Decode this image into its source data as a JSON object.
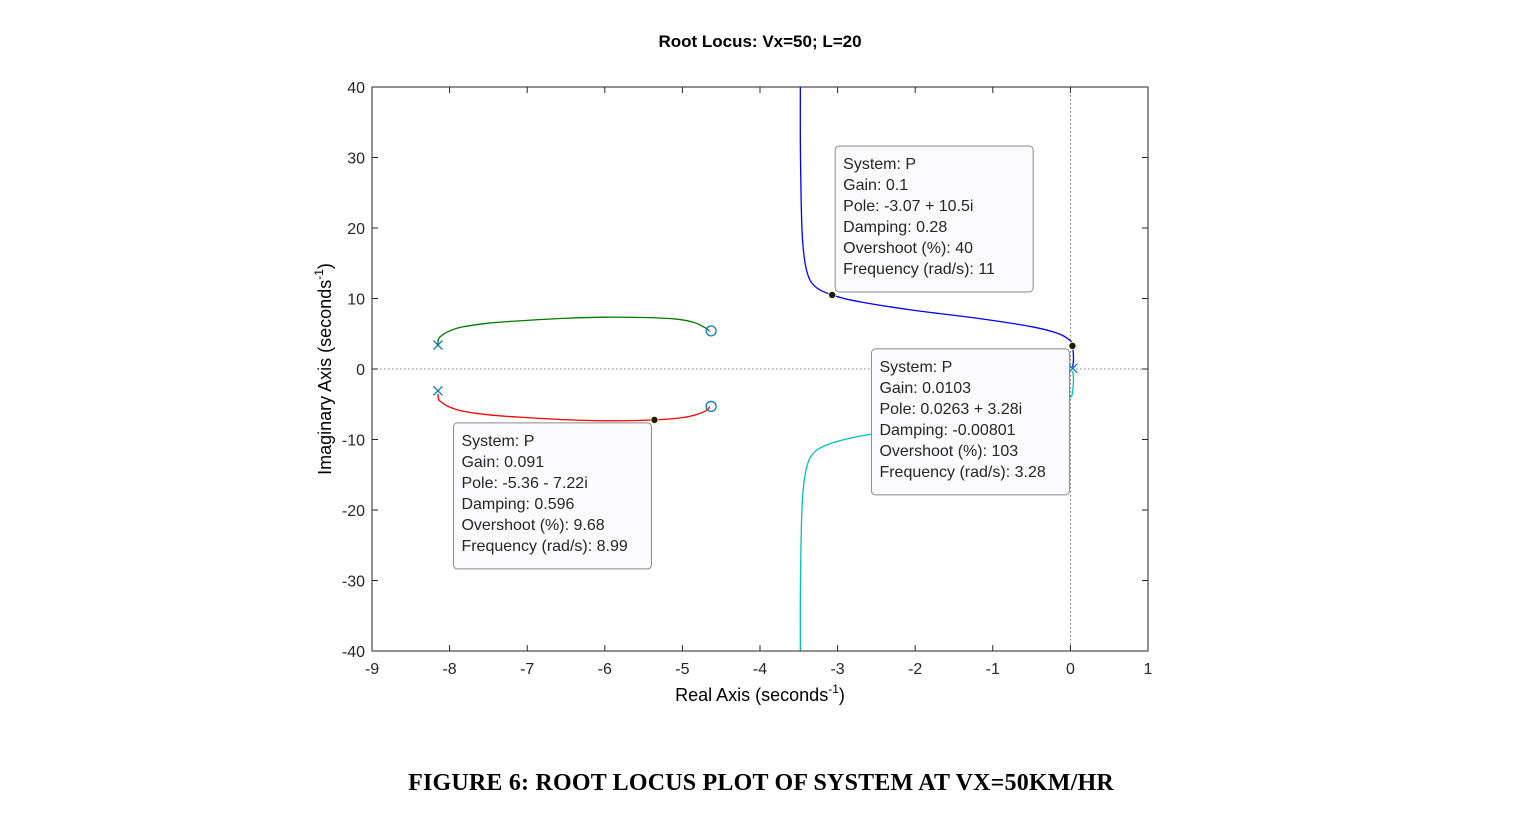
{
  "chart_data": {
    "type": "line",
    "title": "Root Locus: Vx=50; L=20",
    "xlabel": "Real Axis (seconds",
    "ylabel": "Imaginary Axis (seconds",
    "axis_unit_exponent": "-1",
    "axis_label_close": ")",
    "xlim": [
      -9,
      1
    ],
    "ylim": [
      -40,
      40
    ],
    "xticks": [
      -9,
      -8,
      -7,
      -6,
      -5,
      -4,
      -3,
      -2,
      -1,
      0,
      1
    ],
    "yticks": [
      -40,
      -30,
      -20,
      -10,
      0,
      10,
      20,
      30,
      40
    ],
    "grid": false,
    "colors": {
      "blue": "#0000ff",
      "green": "#007a00",
      "red": "#ff0000",
      "cyan": "#00bfbf",
      "marker": "#0072bd"
    },
    "series": [
      {
        "color": "blue",
        "points": [
          [
            -3.48,
            40
          ],
          [
            -3.48,
            32
          ],
          [
            -3.47,
            24
          ],
          [
            -3.45,
            18
          ],
          [
            -3.4,
            14
          ],
          [
            -3.3,
            11.8
          ],
          [
            -3.07,
            10.5
          ],
          [
            -2.7,
            9.5
          ],
          [
            -2.0,
            8.3
          ],
          [
            -1.2,
            7.2
          ],
          [
            -0.5,
            6.0
          ],
          [
            -0.15,
            5.0
          ],
          [
            0.0,
            4.0
          ],
          [
            0.0263,
            3.28
          ],
          [
            0.04,
            1.5
          ],
          [
            0.03,
            0.3
          ]
        ]
      },
      {
        "color": "cyan",
        "points": [
          [
            -3.48,
            -40
          ],
          [
            -3.48,
            -32
          ],
          [
            -3.47,
            -24
          ],
          [
            -3.45,
            -18
          ],
          [
            -3.4,
            -14
          ],
          [
            -3.3,
            -11.8
          ],
          [
            -3.07,
            -10.5
          ],
          [
            -2.7,
            -9.5
          ],
          [
            -2.0,
            -8.3
          ],
          [
            -1.2,
            -7.2
          ],
          [
            -0.5,
            -6.0
          ],
          [
            -0.15,
            -5.0
          ],
          [
            0.0,
            -4.0
          ],
          [
            0.0263,
            -3.28
          ],
          [
            0.04,
            -1.5
          ],
          [
            0.03,
            -0.3
          ]
        ]
      },
      {
        "color": "green",
        "points": [
          [
            -8.15,
            3.5
          ],
          [
            -8.12,
            4.6
          ],
          [
            -7.9,
            5.8
          ],
          [
            -7.5,
            6.5
          ],
          [
            -7.0,
            6.9
          ],
          [
            -6.5,
            7.2
          ],
          [
            -6.0,
            7.35
          ],
          [
            -5.5,
            7.3
          ],
          [
            -5.1,
            7.1
          ],
          [
            -4.85,
            6.6
          ],
          [
            -4.7,
            5.8
          ],
          [
            -4.65,
            5.3
          ]
        ]
      },
      {
        "color": "red",
        "points": [
          [
            -8.15,
            -3.5
          ],
          [
            -8.12,
            -4.6
          ],
          [
            -7.9,
            -5.8
          ],
          [
            -7.5,
            -6.5
          ],
          [
            -7.0,
            -6.9
          ],
          [
            -6.5,
            -7.2
          ],
          [
            -5.95,
            -7.35
          ],
          [
            -5.36,
            -7.22
          ],
          [
            -5.0,
            -6.9
          ],
          [
            -4.8,
            -6.4
          ],
          [
            -4.68,
            -5.8
          ],
          [
            -4.65,
            -5.3
          ]
        ]
      }
    ],
    "poles": [
      [
        -8.15,
        3.4
      ],
      [
        -8.15,
        -3.1
      ],
      [
        0.03,
        0.1
      ]
    ],
    "zeros": [
      [
        -4.63,
        5.4
      ],
      [
        -4.63,
        -5.3
      ]
    ],
    "datatips": [
      {
        "point": [
          -3.07,
          10.5
        ],
        "anchor": "right-up",
        "lines": [
          "System: P",
          "Gain: 0.1",
          "Pole: -3.07 + 10.5i",
          "Damping: 0.28",
          "Overshoot (%): 40",
          "Frequency (rad/s): 11"
        ]
      },
      {
        "point": [
          0.0263,
          3.28
        ],
        "anchor": "left-down",
        "lines": [
          "System: P",
          "Gain: 0.0103",
          "Pole: 0.0263 + 3.28i",
          "Damping: -0.00801",
          "Overshoot (%): 103",
          "Frequency (rad/s): 3.28"
        ]
      },
      {
        "point": [
          -5.36,
          -7.22
        ],
        "anchor": "left-down",
        "lines": [
          "System: P",
          "Gain: 0.091",
          "Pole: -5.36 - 7.22i",
          "Damping: 0.596",
          "Overshoot (%): 9.68",
          "Frequency (rad/s): 8.99"
        ]
      }
    ]
  },
  "caption": "FIGURE 6: ROOT LOCUS PLOT OF SYSTEM AT VX=50KM/HR"
}
